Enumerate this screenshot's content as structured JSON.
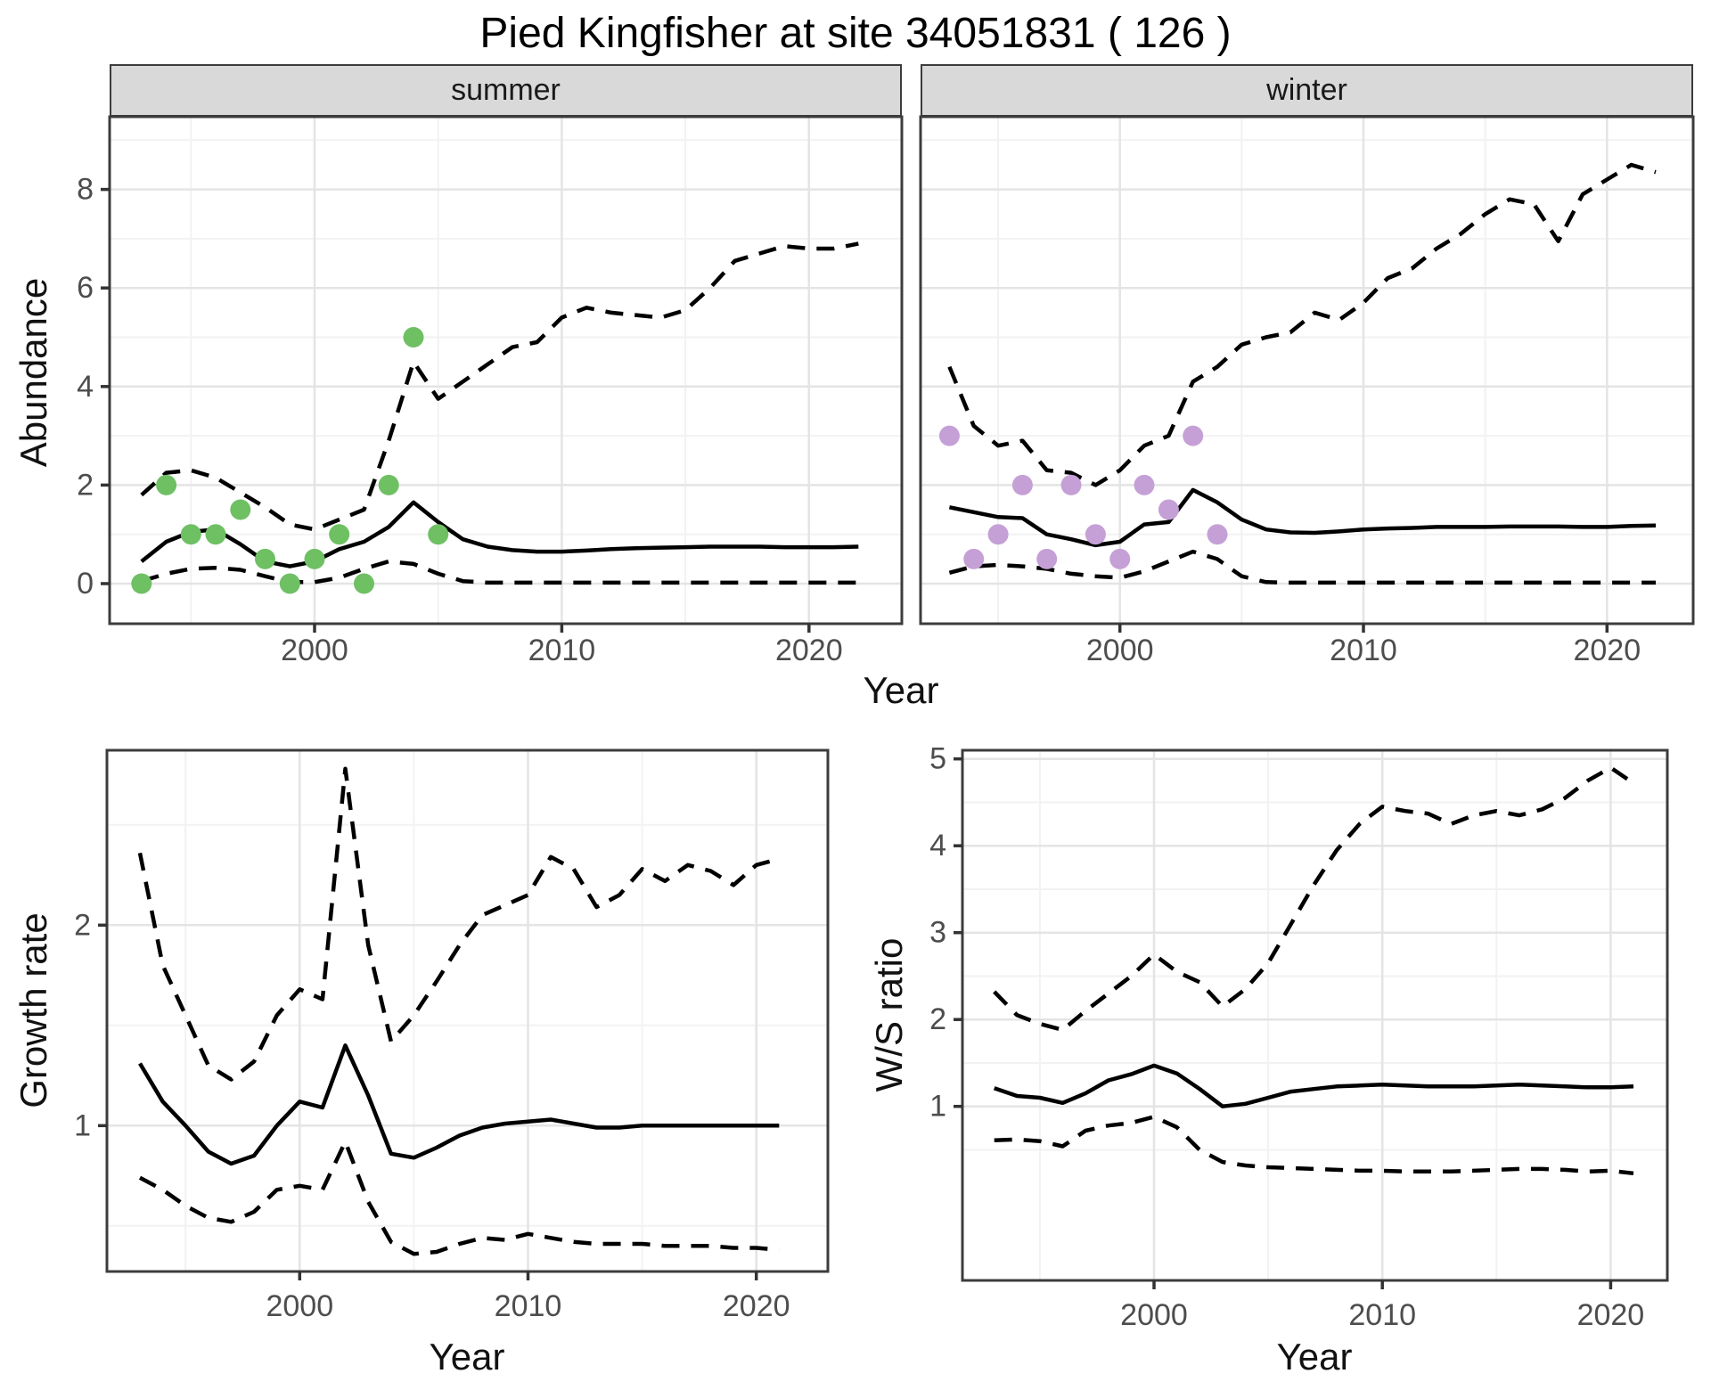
{
  "title": "Pied Kingfisher at site 34051831 ( 126 )",
  "colors": {
    "summer_point": "#6ec063",
    "winter_point": "#c5a0d6",
    "line": "#000000",
    "strip_bg": "#d9d9d9",
    "grid_major": "#e4e4e4",
    "grid_minor": "#f2f2f2",
    "panel_border": "#3c3c3c",
    "axis_text": "#4d4d4d"
  },
  "top": {
    "ylabel": "Abundance",
    "xlabel": "Year",
    "facets": [
      "summer",
      "winter"
    ],
    "yticks": [
      0,
      2,
      4,
      6,
      8
    ],
    "xticks": [
      2000,
      2010,
      2020
    ]
  },
  "bottom_left": {
    "ylabel": "Growth rate",
    "xlabel": "Year",
    "yticks": [
      1,
      2
    ],
    "xticks": [
      2000,
      2010,
      2020
    ]
  },
  "bottom_right": {
    "ylabel": "W/S ratio",
    "xlabel": "Year",
    "yticks": [
      1,
      2,
      3,
      4,
      5
    ],
    "xticks": [
      2000,
      2010,
      2020
    ]
  },
  "chart_data": [
    {
      "id": "abundance_summer",
      "type": "line",
      "title": "summer",
      "xlabel": "Year",
      "ylabel": "Abundance",
      "xlim": [
        1991.7,
        2023.8
      ],
      "ylim": [
        -0.9,
        9.45
      ],
      "xticks": [
        2000,
        2010,
        2020
      ],
      "yticks": [
        0,
        2,
        4,
        6,
        8
      ],
      "x": [
        1993,
        1994,
        1995,
        1996,
        1997,
        1998,
        1999,
        2000,
        2001,
        2002,
        2003,
        2004,
        2005,
        2006,
        2007,
        2008,
        2009,
        2010,
        2011,
        2012,
        2013,
        2014,
        2015,
        2016,
        2017,
        2018,
        2019,
        2020,
        2021,
        2022
      ],
      "series": [
        {
          "name": "upper_95ci",
          "style": "dashed",
          "values": [
            1.8,
            2.25,
            2.3,
            2.15,
            1.85,
            1.55,
            1.2,
            1.1,
            1.3,
            1.5,
            2.9,
            4.5,
            3.75,
            4.1,
            4.45,
            4.8,
            4.9,
            5.4,
            5.6,
            5.5,
            5.45,
            5.4,
            5.55,
            6.0,
            6.55,
            6.7,
            6.85,
            6.8,
            6.8,
            6.9
          ]
        },
        {
          "name": "median",
          "style": "solid",
          "values": [
            0.45,
            0.85,
            1.05,
            1.1,
            0.8,
            0.45,
            0.35,
            0.45,
            0.7,
            0.85,
            1.15,
            1.65,
            1.25,
            0.9,
            0.75,
            0.68,
            0.65,
            0.65,
            0.67,
            0.7,
            0.72,
            0.73,
            0.74,
            0.75,
            0.75,
            0.75,
            0.74,
            0.74,
            0.74,
            0.75
          ]
        },
        {
          "name": "lower_95ci",
          "style": "dashed",
          "values": [
            0.05,
            0.2,
            0.3,
            0.32,
            0.28,
            0.15,
            0.03,
            0.03,
            0.12,
            0.3,
            0.45,
            0.4,
            0.2,
            0.05,
            0.02,
            0.02,
            0.02,
            0.02,
            0.02,
            0.02,
            0.02,
            0.02,
            0.02,
            0.02,
            0.02,
            0.02,
            0.02,
            0.02,
            0.02,
            0.02
          ]
        }
      ],
      "points": {
        "name": "observed_abundance_summer",
        "color": "#6ec063",
        "years": [
          1993,
          1994,
          1995,
          1996,
          1997,
          1998,
          1999,
          2000,
          2001,
          2002,
          2003,
          2004,
          2005
        ],
        "values": [
          0,
          2,
          1,
          1,
          1.5,
          0.5,
          0,
          0.5,
          1,
          0,
          2,
          5,
          1
        ]
      }
    },
    {
      "id": "abundance_winter",
      "type": "line",
      "title": "winter",
      "xlabel": "Year",
      "ylabel": "Abundance",
      "xlim": [
        1991.8,
        2023.5
      ],
      "ylim": [
        -0.9,
        9.45
      ],
      "xticks": [
        2000,
        2010,
        2020
      ],
      "yticks": [
        0,
        2,
        4,
        6,
        8
      ],
      "x": [
        1993,
        1994,
        1995,
        1996,
        1997,
        1998,
        1999,
        2000,
        2001,
        2002,
        2003,
        2004,
        2005,
        2006,
        2007,
        2008,
        2009,
        2010,
        2011,
        2012,
        2013,
        2014,
        2015,
        2016,
        2017,
        2018,
        2019,
        2020,
        2021,
        2022
      ],
      "series": [
        {
          "name": "upper_95ci",
          "style": "dashed",
          "values": [
            4.4,
            3.2,
            2.8,
            2.9,
            2.3,
            2.25,
            2.0,
            2.3,
            2.8,
            3.0,
            4.1,
            4.4,
            4.85,
            5.0,
            5.1,
            5.5,
            5.35,
            5.7,
            6.2,
            6.4,
            6.8,
            7.1,
            7.5,
            7.8,
            7.7,
            6.95,
            7.9,
            8.2,
            8.5,
            8.35
          ]
        },
        {
          "name": "median",
          "style": "solid",
          "values": [
            1.55,
            1.45,
            1.35,
            1.33,
            1.0,
            0.9,
            0.78,
            0.85,
            1.2,
            1.25,
            1.9,
            1.65,
            1.3,
            1.1,
            1.04,
            1.03,
            1.06,
            1.1,
            1.12,
            1.13,
            1.15,
            1.15,
            1.15,
            1.16,
            1.16,
            1.16,
            1.15,
            1.15,
            1.17,
            1.18
          ]
        },
        {
          "name": "lower_95ci",
          "style": "dashed",
          "values": [
            0.22,
            0.35,
            0.38,
            0.35,
            0.3,
            0.2,
            0.15,
            0.12,
            0.25,
            0.45,
            0.65,
            0.5,
            0.15,
            0.03,
            0.02,
            0.02,
            0.02,
            0.02,
            0.02,
            0.02,
            0.02,
            0.02,
            0.02,
            0.02,
            0.02,
            0.02,
            0.02,
            0.02,
            0.02,
            0.02
          ]
        }
      ],
      "points": {
        "name": "observed_abundance_winter",
        "color": "#c5a0d6",
        "years": [
          1993,
          1994,
          1995,
          1996,
          1997,
          1998,
          1999,
          2000,
          2001,
          2002,
          2003,
          2004
        ],
        "values": [
          3,
          0.5,
          1,
          2,
          0.5,
          2,
          1,
          0.5,
          2,
          1.5,
          3,
          1
        ]
      }
    },
    {
      "id": "growth_rate",
      "type": "line",
      "title": "",
      "xlabel": "Year",
      "ylabel": "Growth rate",
      "xlim": [
        1991.6,
        2023.1
      ],
      "ylim": [
        0.27,
        2.87
      ],
      "xticks": [
        2000,
        2010,
        2020
      ],
      "yticks": [
        1,
        2
      ],
      "x": [
        1993,
        1994,
        1995,
        1996,
        1997,
        1998,
        1999,
        2000,
        2001,
        2002,
        2003,
        2004,
        2005,
        2006,
        2007,
        2008,
        2009,
        2010,
        2011,
        2012,
        2013,
        2014,
        2015,
        2016,
        2017,
        2018,
        2019,
        2020,
        2021
      ],
      "series": [
        {
          "name": "upper_95ci",
          "style": "dashed",
          "values": [
            2.36,
            1.8,
            1.55,
            1.3,
            1.23,
            1.32,
            1.55,
            1.68,
            1.63,
            2.78,
            1.9,
            1.42,
            1.55,
            1.72,
            1.9,
            2.05,
            2.1,
            2.15,
            2.34,
            2.28,
            2.09,
            2.15,
            2.28,
            2.22,
            2.3,
            2.27,
            2.2,
            2.3,
            2.33
          ]
        },
        {
          "name": "median",
          "style": "solid",
          "values": [
            1.31,
            1.12,
            1.0,
            0.87,
            0.81,
            0.85,
            1.0,
            1.12,
            1.09,
            1.4,
            1.15,
            0.86,
            0.84,
            0.89,
            0.95,
            0.99,
            1.01,
            1.02,
            1.03,
            1.01,
            0.99,
            0.99,
            1.0,
            1.0,
            1.0,
            1.0,
            1.0,
            1.0,
            1.0
          ]
        },
        {
          "name": "lower_95ci",
          "style": "dashed",
          "values": [
            0.74,
            0.68,
            0.6,
            0.54,
            0.52,
            0.57,
            0.68,
            0.7,
            0.68,
            0.92,
            0.62,
            0.42,
            0.36,
            0.37,
            0.41,
            0.44,
            0.43,
            0.46,
            0.44,
            0.42,
            0.41,
            0.41,
            0.41,
            0.4,
            0.4,
            0.4,
            0.39,
            0.39,
            0.38
          ]
        }
      ]
    },
    {
      "id": "ws_ratio",
      "type": "line",
      "title": "",
      "xlabel": "Year",
      "ylabel": "W/S ratio",
      "xlim": [
        1991.6,
        2022.5
      ],
      "ylim": [
        0,
        5.1
      ],
      "xticks": [
        2000,
        2010,
        2020
      ],
      "yticks": [
        1,
        2,
        3,
        4,
        5
      ],
      "x": [
        1993,
        1994,
        1995,
        1996,
        1997,
        1998,
        1999,
        2000,
        2001,
        2002,
        2003,
        2004,
        2005,
        2006,
        2007,
        2008,
        2009,
        2010,
        2011,
        2012,
        2013,
        2014,
        2015,
        2016,
        2017,
        2018,
        2019,
        2020,
        2021
      ],
      "series": [
        {
          "name": "upper_95ci",
          "style": "dashed",
          "values": [
            2.32,
            2.05,
            1.95,
            1.88,
            2.1,
            2.3,
            2.5,
            2.75,
            2.55,
            2.43,
            2.15,
            2.35,
            2.65,
            3.1,
            3.55,
            3.95,
            4.25,
            4.45,
            4.4,
            4.37,
            4.25,
            4.35,
            4.4,
            4.35,
            4.42,
            4.55,
            4.75,
            4.9,
            4.72
          ]
        },
        {
          "name": "median",
          "style": "solid",
          "values": [
            1.21,
            1.12,
            1.1,
            1.04,
            1.15,
            1.3,
            1.37,
            1.47,
            1.38,
            1.2,
            1.0,
            1.03,
            1.1,
            1.17,
            1.2,
            1.23,
            1.24,
            1.25,
            1.24,
            1.23,
            1.23,
            1.23,
            1.24,
            1.25,
            1.24,
            1.23,
            1.22,
            1.22,
            1.23
          ]
        },
        {
          "name": "lower_95ci",
          "style": "dashed",
          "values": [
            0.61,
            0.62,
            0.6,
            0.54,
            0.72,
            0.78,
            0.81,
            0.88,
            0.76,
            0.5,
            0.36,
            0.32,
            0.3,
            0.29,
            0.28,
            0.27,
            0.26,
            0.26,
            0.25,
            0.25,
            0.25,
            0.26,
            0.27,
            0.28,
            0.28,
            0.27,
            0.25,
            0.26,
            0.23
          ]
        }
      ]
    }
  ]
}
